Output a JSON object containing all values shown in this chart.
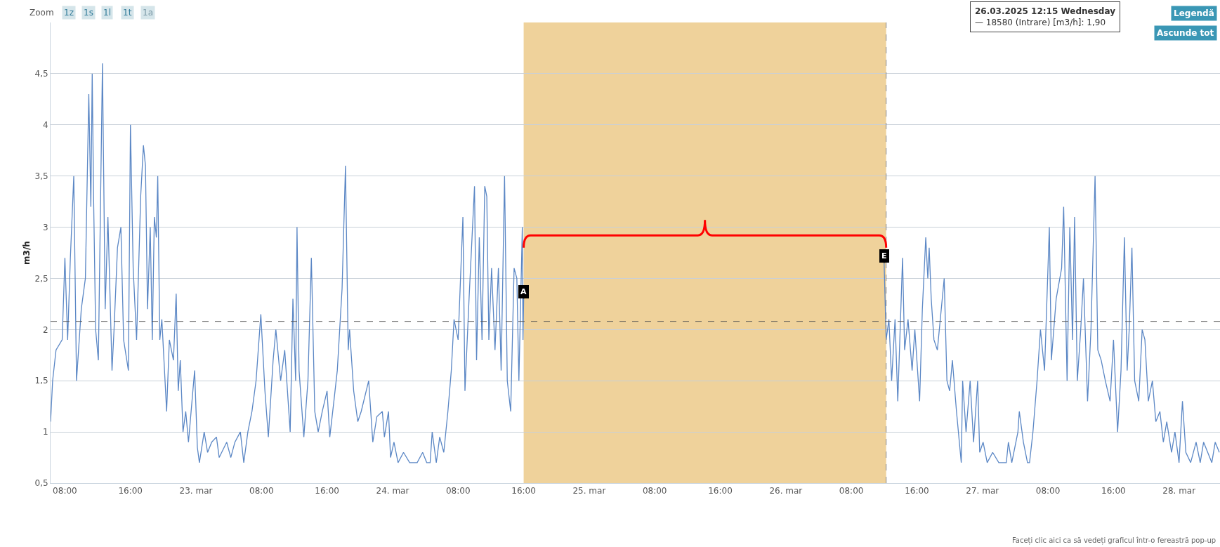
{
  "chart_data": {
    "type": "line",
    "ylabel": "m3/h",
    "x": [
      "2025-03-22T06:15",
      "2025-03-22T06:30",
      "2025-03-22T06:55",
      "2025-03-22T07:40",
      "2025-03-22T08:00",
      "2025-03-22T08:20",
      "2025-03-22T08:40",
      "2025-03-22T09:05",
      "2025-03-22T09:25",
      "2025-03-22T10:00",
      "2025-03-22T10:30",
      "2025-03-22T10:55",
      "2025-03-22T11:10",
      "2025-03-22T11:20",
      "2025-03-22T11:30",
      "2025-03-22T11:45",
      "2025-03-22T12:05",
      "2025-03-22T12:35",
      "2025-03-22T12:55",
      "2025-03-22T13:15",
      "2025-03-22T13:45",
      "2025-03-22T14:00",
      "2025-03-22T14:25",
      "2025-03-22T14:50",
      "2025-03-22T15:10",
      "2025-03-22T15:45",
      "2025-03-22T16:00",
      "2025-03-22T16:20",
      "2025-03-22T16:45",
      "2025-03-22T17:15",
      "2025-03-22T17:35",
      "2025-03-22T17:50",
      "2025-03-22T18:05",
      "2025-03-22T18:25",
      "2025-03-22T18:40",
      "2025-03-22T18:55",
      "2025-03-22T19:10",
      "2025-03-22T19:20",
      "2025-03-22T19:35",
      "2025-03-22T19:50",
      "2025-03-22T20:25",
      "2025-03-22T20:45",
      "2025-03-22T21:15",
      "2025-03-22T21:35",
      "2025-03-22T21:50",
      "2025-03-22T22:05",
      "2025-03-22T22:25",
      "2025-03-22T22:45",
      "2025-03-22T23:05",
      "2025-03-22T23:50",
      "2025-03-23T00:10",
      "2025-03-23T00:25",
      "2025-03-23T01:00",
      "2025-03-23T01:25",
      "2025-03-23T01:55",
      "2025-03-23T02:30",
      "2025-03-23T02:50",
      "2025-03-23T03:45",
      "2025-03-23T04:15",
      "2025-03-23T04:45",
      "2025-03-23T05:25",
      "2025-03-23T05:50",
      "2025-03-23T06:20",
      "2025-03-23T06:50",
      "2025-03-23T07:20",
      "2025-03-23T07:55",
      "2025-03-23T08:25",
      "2025-03-23T08:50",
      "2025-03-23T09:25",
      "2025-03-23T09:45",
      "2025-03-23T10:20",
      "2025-03-23T10:50",
      "2025-03-23T11:15",
      "2025-03-23T11:30",
      "2025-03-23T11:50",
      "2025-03-23T12:10",
      "2025-03-23T12:20",
      "2025-03-23T12:35",
      "2025-03-23T13:10",
      "2025-03-23T13:40",
      "2025-03-23T14:05",
      "2025-03-23T14:30",
      "2025-03-23T14:55",
      "2025-03-23T15:25",
      "2025-03-23T16:00",
      "2025-03-23T16:20",
      "2025-03-23T16:50",
      "2025-03-23T17:15",
      "2025-03-23T17:50",
      "2025-03-23T18:15",
      "2025-03-23T18:35",
      "2025-03-23T18:45",
      "2025-03-23T19:15",
      "2025-03-23T19:45",
      "2025-03-23T20:10",
      "2025-03-23T21:05",
      "2025-03-23T21:35",
      "2025-03-23T22:05",
      "2025-03-23T22:45",
      "2025-03-23T23:00",
      "2025-03-23T23:30",
      "2025-03-23T23:45",
      "2025-03-24T00:10",
      "2025-03-24T00:40",
      "2025-03-24T01:20",
      "2025-03-24T02:05",
      "2025-03-24T03:00",
      "2025-03-24T03:40",
      "2025-03-24T04:10",
      "2025-03-24T04:35",
      "2025-03-24T04:50",
      "2025-03-24T05:20",
      "2025-03-24T05:45",
      "2025-03-24T06:15",
      "2025-03-24T06:45",
      "2025-03-24T07:10",
      "2025-03-24T07:30",
      "2025-03-24T08:00",
      "2025-03-24T08:35",
      "2025-03-24T08:50",
      "2025-03-24T09:20",
      "2025-03-24T10:00",
      "2025-03-24T10:15",
      "2025-03-24T10:35",
      "2025-03-24T10:55",
      "2025-03-24T11:15",
      "2025-03-24T11:30",
      "2025-03-24T11:45",
      "2025-03-24T12:05",
      "2025-03-24T12:30",
      "2025-03-24T12:55",
      "2025-03-24T13:15",
      "2025-03-24T13:40",
      "2025-03-24T14:00",
      "2025-03-24T14:25",
      "2025-03-24T14:50",
      "2025-03-24T15:10",
      "2025-03-24T15:25",
      "2025-03-24T15:45",
      "2025-03-24T15:50",
      "2025-03-24T15:55",
      "2025-03-24T16:00",
      "2025-03-25T12:00",
      "2025-03-26T12:00",
      "2025-03-26T12:15",
      "2025-03-26T12:35",
      "2025-03-26T12:55",
      "2025-03-26T13:20",
      "2025-03-26T13:40",
      "2025-03-26T14:15",
      "2025-03-26T14:30",
      "2025-03-26T14:55",
      "2025-03-26T15:25",
      "2025-03-26T15:45",
      "2025-03-26T16:20",
      "2025-03-26T16:40",
      "2025-03-26T17:05",
      "2025-03-26T17:20",
      "2025-03-26T17:30",
      "2025-03-26T17:45",
      "2025-03-26T18:05",
      "2025-03-26T18:30",
      "2025-03-26T19:20",
      "2025-03-26T19:40",
      "2025-03-26T20:00",
      "2025-03-26T20:20",
      "2025-03-26T20:50",
      "2025-03-26T21:25",
      "2025-03-26T21:35",
      "2025-03-26T22:00",
      "2025-03-26T22:30",
      "2025-03-26T22:55",
      "2025-03-26T23:25",
      "2025-03-26T23:40",
      "2025-03-27T00:05",
      "2025-03-27T00:35",
      "2025-03-27T01:15",
      "2025-03-27T02:00",
      "2025-03-27T02:55",
      "2025-03-27T03:10",
      "2025-03-27T03:35",
      "2025-03-27T04:20",
      "2025-03-27T04:30",
      "2025-03-27T05:00",
      "2025-03-27T05:30",
      "2025-03-27T05:45",
      "2025-03-27T06:10",
      "2025-03-27T06:40",
      "2025-03-27T07:05",
      "2025-03-27T07:35",
      "2025-03-27T08:10",
      "2025-03-27T08:25",
      "2025-03-27T09:00",
      "2025-03-27T09:40",
      "2025-03-27T09:55",
      "2025-03-27T10:20",
      "2025-03-27T10:40",
      "2025-03-27T11:00",
      "2025-03-27T11:15",
      "2025-03-27T11:35",
      "2025-03-27T12:00",
      "2025-03-27T12:20",
      "2025-03-27T12:50",
      "2025-03-27T13:15",
      "2025-03-27T13:45",
      "2025-03-27T14:05",
      "2025-03-27T14:30",
      "2025-03-27T15:00",
      "2025-03-27T15:35",
      "2025-03-27T16:00",
      "2025-03-27T16:30",
      "2025-03-27T16:55",
      "2025-03-27T17:20",
      "2025-03-27T17:40",
      "2025-03-27T17:55",
      "2025-03-27T18:15",
      "2025-03-27T18:35",
      "2025-03-27T19:05",
      "2025-03-27T19:30",
      "2025-03-27T19:50",
      "2025-03-27T20:15",
      "2025-03-27T20:45",
      "2025-03-27T21:10",
      "2025-03-27T21:40",
      "2025-03-27T22:05",
      "2025-03-27T22:30",
      "2025-03-27T23:05",
      "2025-03-27T23:30",
      "2025-03-28T00:00",
      "2025-03-28T00:25",
      "2025-03-28T00:50",
      "2025-03-28T01:25",
      "2025-03-28T02:05",
      "2025-03-28T02:35",
      "2025-03-28T03:00",
      "2025-03-28T03:30",
      "2025-03-28T04:00",
      "2025-03-28T04:25",
      "2025-03-28T04:55"
    ],
    "series": [
      {
        "color": "#5b87c5",
        "values": [
          1.1,
          1.5,
          1.8,
          1.9,
          2.7,
          1.9,
          2.7,
          3.5,
          1.5,
          2.2,
          2.5,
          4.3,
          3.2,
          4.5,
          3.3,
          2.0,
          1.7,
          4.6,
          2.2,
          3.1,
          1.6,
          2.0,
          2.8,
          3.0,
          1.9,
          1.6,
          4.0,
          2.6,
          1.9,
          3.3,
          3.8,
          3.6,
          2.2,
          3.0,
          1.9,
          3.1,
          2.9,
          3.5,
          1.9,
          2.1,
          1.2,
          1.9,
          1.7,
          2.35,
          1.4,
          1.7,
          1.0,
          1.2,
          0.9,
          1.6,
          0.85,
          0.7,
          1.0,
          0.8,
          0.9,
          0.95,
          0.75,
          0.9,
          0.75,
          0.9,
          1.0,
          0.7,
          1.0,
          1.2,
          1.5,
          2.15,
          1.4,
          0.95,
          1.7,
          2.0,
          1.5,
          1.8,
          1.3,
          1.0,
          2.3,
          1.5,
          3.0,
          1.6,
          0.95,
          1.5,
          2.7,
          1.2,
          1.0,
          1.2,
          1.4,
          0.95,
          1.3,
          1.6,
          2.4,
          3.6,
          1.8,
          2.0,
          1.4,
          1.1,
          1.2,
          1.5,
          0.9,
          1.15,
          1.2,
          0.95,
          1.2,
          0.75,
          0.9,
          0.7,
          0.8,
          0.7,
          0.7,
          0.8,
          0.7,
          0.7,
          1.0,
          0.7,
          0.95,
          0.8,
          1.2,
          1.6,
          2.1,
          1.9,
          3.1,
          1.4,
          2.3,
          3.4,
          1.7,
          2.9,
          1.9,
          3.4,
          3.3,
          1.9,
          2.6,
          1.8,
          2.6,
          1.6,
          3.5,
          1.5,
          1.2,
          2.6,
          2.5,
          1.5,
          2.7,
          3.0,
          1.9,
          2.3,
          null,
          2.65,
          1.9,
          2.1,
          1.5,
          2.1,
          1.3,
          2.7,
          1.8,
          2.1,
          1.6,
          2.0,
          1.3,
          2.2,
          2.9,
          2.5,
          2.8,
          2.3,
          1.9,
          1.8,
          2.5,
          1.5,
          1.4,
          1.7,
          1.2,
          0.7,
          1.5,
          1.0,
          1.5,
          0.9,
          1.5,
          0.8,
          0.9,
          0.7,
          0.8,
          0.7,
          0.7,
          0.9,
          0.7,
          1.0,
          1.2,
          0.9,
          0.7,
          0.7,
          1.0,
          1.5,
          2.0,
          1.6,
          3.0,
          1.7,
          2.3,
          2.6,
          3.2,
          1.5,
          3.0,
          1.9,
          3.1,
          1.5,
          2.0,
          2.5,
          1.3,
          2.0,
          3.5,
          1.8,
          1.7,
          1.5,
          1.3,
          1.9,
          1.0,
          1.6,
          2.9,
          1.6,
          2.0,
          2.8,
          1.5,
          1.3,
          2.0,
          1.9,
          1.3,
          1.5,
          1.1,
          1.2,
          0.9,
          1.1,
          0.8,
          1.0,
          0.7,
          1.3,
          0.8,
          0.7,
          0.9,
          0.7,
          0.9,
          0.8,
          0.7,
          0.9,
          0.8
        ]
      }
    ],
    "xlim": [
      "2025-03-22T06:15",
      "2025-03-28T05:00"
    ],
    "xticks": [
      {
        "value": "2025-03-22T08:00",
        "label": "08:00"
      },
      {
        "value": "2025-03-22T16:00",
        "label": "16:00"
      },
      {
        "value": "2025-03-23T00:00",
        "label": "23. mar"
      },
      {
        "value": "2025-03-23T08:00",
        "label": "08:00"
      },
      {
        "value": "2025-03-23T16:00",
        "label": "16:00"
      },
      {
        "value": "2025-03-24T00:00",
        "label": "24. mar"
      },
      {
        "value": "2025-03-24T08:00",
        "label": "08:00"
      },
      {
        "value": "2025-03-24T16:00",
        "label": "16:00"
      },
      {
        "value": "2025-03-25T00:00",
        "label": "25. mar"
      },
      {
        "value": "2025-03-25T08:00",
        "label": "08:00"
      },
      {
        "value": "2025-03-25T16:00",
        "label": "16:00"
      },
      {
        "value": "2025-03-26T00:00",
        "label": "26. mar"
      },
      {
        "value": "2025-03-26T08:00",
        "label": "08:00"
      },
      {
        "value": "2025-03-26T16:00",
        "label": "16:00"
      },
      {
        "value": "2025-03-27T00:00",
        "label": "27. mar"
      },
      {
        "value": "2025-03-27T08:00",
        "label": "08:00"
      },
      {
        "value": "2025-03-27T16:00",
        "label": "16:00"
      },
      {
        "value": "2025-03-28T00:00",
        "label": "28. mar"
      }
    ],
    "ylim": [
      0.5,
      5.0
    ],
    "yticks": [
      {
        "value": 0.5,
        "label": "0,5"
      },
      1,
      {
        "value": 1.5,
        "label": "1,5"
      },
      2,
      {
        "value": 2.5,
        "label": "2,5"
      },
      3,
      {
        "value": 3.5,
        "label": "3,5"
      },
      4,
      {
        "value": 4.5,
        "label": "4,5"
      }
    ],
    "grid": "y",
    "marker": "none",
    "line_style": "solid",
    "bands": [
      {
        "axis": "x",
        "from": "2025-03-24T16:00",
        "to": "2025-03-26T12:15",
        "color": "#efd29b"
      }
    ],
    "ref_lines": [
      {
        "axis": "y",
        "value": 2.08,
        "color": "#555555",
        "line_style": "dashed"
      },
      {
        "axis": "x",
        "value": "2025-03-26T12:15",
        "color": "#888888",
        "line_style": "dashed"
      }
    ],
    "annotations": [
      {
        "text": "A",
        "x": "2025-03-24T16:00",
        "y": 2.3
      },
      {
        "text": "E",
        "x": "2025-03-26T12:00",
        "y": 2.65
      },
      "26.03.2025 12:15 Wednesday\n— 18580 (Intrare) [m3/h]: 1,90",
      "Zoom",
      "1z",
      "1s",
      "1l",
      "1t",
      "1a",
      "Legendă",
      "Ascunde tot",
      "Faceți clic aici ca să vedeți graficul într-o fereastră pop-up"
    ]
  }
}
